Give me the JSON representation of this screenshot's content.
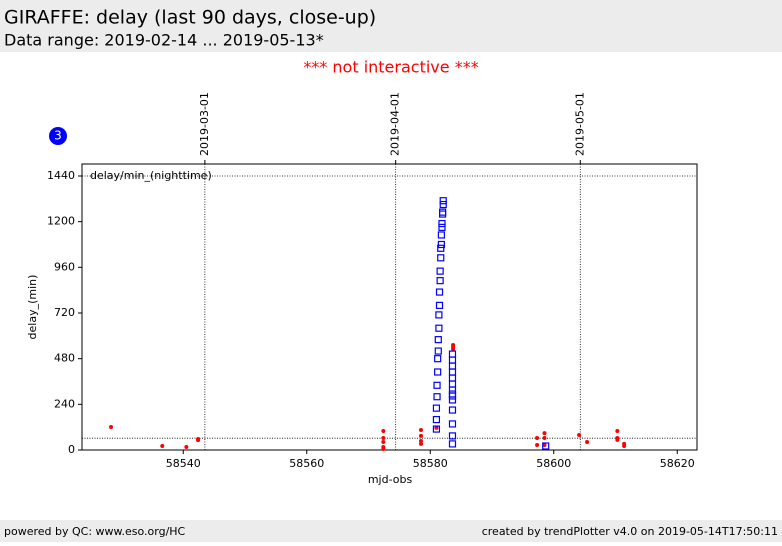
{
  "header": {
    "title": "GIRAFFE: delay (last 90 days, close-up)",
    "subtitle": "Data range: 2019-02-14 ... 2019-05-13*",
    "notice": "*** not interactive ***"
  },
  "badge": "3",
  "chart_data": {
    "type": "scatter",
    "annotation": "delay/min_(nighttime)",
    "x_label": "mjd-obs",
    "y_label": "delay_(min)",
    "xlim": [
      58523.6,
      58623.2
    ],
    "ylim": [
      0,
      1503
    ],
    "xticks": [
      58540,
      58560,
      58580,
      58600,
      58620
    ],
    "yticks": [
      0,
      240,
      480,
      720,
      960,
      1200,
      1440
    ],
    "date_markers": [
      {
        "value": 58543.5,
        "label": "2019-03-01"
      },
      {
        "value": 58574.4,
        "label": "2019-04-01"
      },
      {
        "value": 58604.3,
        "label": "2019-05-01"
      }
    ],
    "hlines": [
      62,
      1440
    ],
    "series": [
      {
        "color": "#ff0000",
        "marker": "dot",
        "x": [
          58528.3,
          58536.6,
          58540.5,
          58542.4,
          58542.4,
          58572.4,
          58572.4,
          58572.4,
          58572.4,
          58572.4,
          58578.5,
          58578.5,
          58578.5,
          58578.5,
          58581.0,
          58583.7,
          58583.7,
          58583.7,
          58597.3,
          58597.3,
          58598.5,
          58598.5,
          58598.5,
          58604.1,
          58605.4,
          58610.3,
          58610.3,
          58610.3,
          58611.4,
          58611.4
        ],
        "values": [
          121,
          21,
          16,
          58,
          52,
          100,
          63,
          42,
          16,
          5,
          105,
          74,
          47,
          32,
          116,
          552,
          541,
          531,
          63,
          26,
          89,
          63,
          26,
          79,
          42,
          100,
          63,
          53,
          32,
          21
        ]
      },
      {
        "color": "#0000ff",
        "marker": "square",
        "x": [
          58581.0,
          58581.0,
          58581.0,
          58581.1,
          58581.1,
          58581.2,
          58581.2,
          58581.3,
          58581.3,
          58581.4,
          58581.4,
          58581.5,
          58581.5,
          58581.6,
          58581.6,
          58581.7,
          58581.7,
          58581.8,
          58581.8,
          58581.9,
          58581.9,
          58582.0,
          58582.0,
          58582.1,
          58582.1,
          58583.6,
          58583.6,
          58583.6,
          58583.6,
          58583.6,
          58583.6,
          58583.6,
          58583.6,
          58583.6,
          58583.6,
          58583.6,
          58583.6,
          58583.6,
          58583.6,
          58598.7
        ],
        "values": [
          110,
          160,
          220,
          280,
          340,
          410,
          480,
          520,
          580,
          640,
          710,
          760,
          830,
          890,
          940,
          1010,
          1060,
          1080,
          1130,
          1170,
          1190,
          1240,
          1250,
          1290,
          1310,
          32,
          74,
          137,
          210,
          263,
          284,
          294,
          315,
          347,
          378,
          410,
          441,
          473,
          504,
          21
        ]
      }
    ]
  },
  "footer": {
    "left": "powered by QC: www.eso.org/HC",
    "right": "created by trendPlotter v4.0 on 2019-05-14T17:50:11"
  }
}
